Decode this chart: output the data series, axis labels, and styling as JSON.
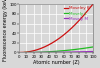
{
  "title": "",
  "xlabel": "Atomic number (Z)",
  "ylabel": "Fluorescence energy (keV)",
  "xlim": [
    0,
    100
  ],
  "ylim": [
    0,
    100
  ],
  "xticks": [
    0,
    10,
    20,
    30,
    40,
    50,
    60,
    70,
    80,
    90,
    100
  ],
  "yticks": [
    0,
    20,
    40,
    60,
    80,
    100
  ],
  "lines": [
    {
      "label": "Moseley K",
      "color": "#cc1111",
      "a": 0.01045,
      "b": 1.0
    },
    {
      "label": "Mosely L",
      "color": "#22bb22",
      "a": 0.00135,
      "b": 7.4
    },
    {
      "label": "Mosely M",
      "color": "#9933bb",
      "a": 0.000265,
      "b": 13.0
    }
  ],
  "bg_color": "#d8d8d8",
  "grid_color": "#ffffff",
  "label_fontsize": 3.5,
  "tick_fontsize": 2.8,
  "legend_fontsize": 3.0,
  "linewidth": 0.9
}
